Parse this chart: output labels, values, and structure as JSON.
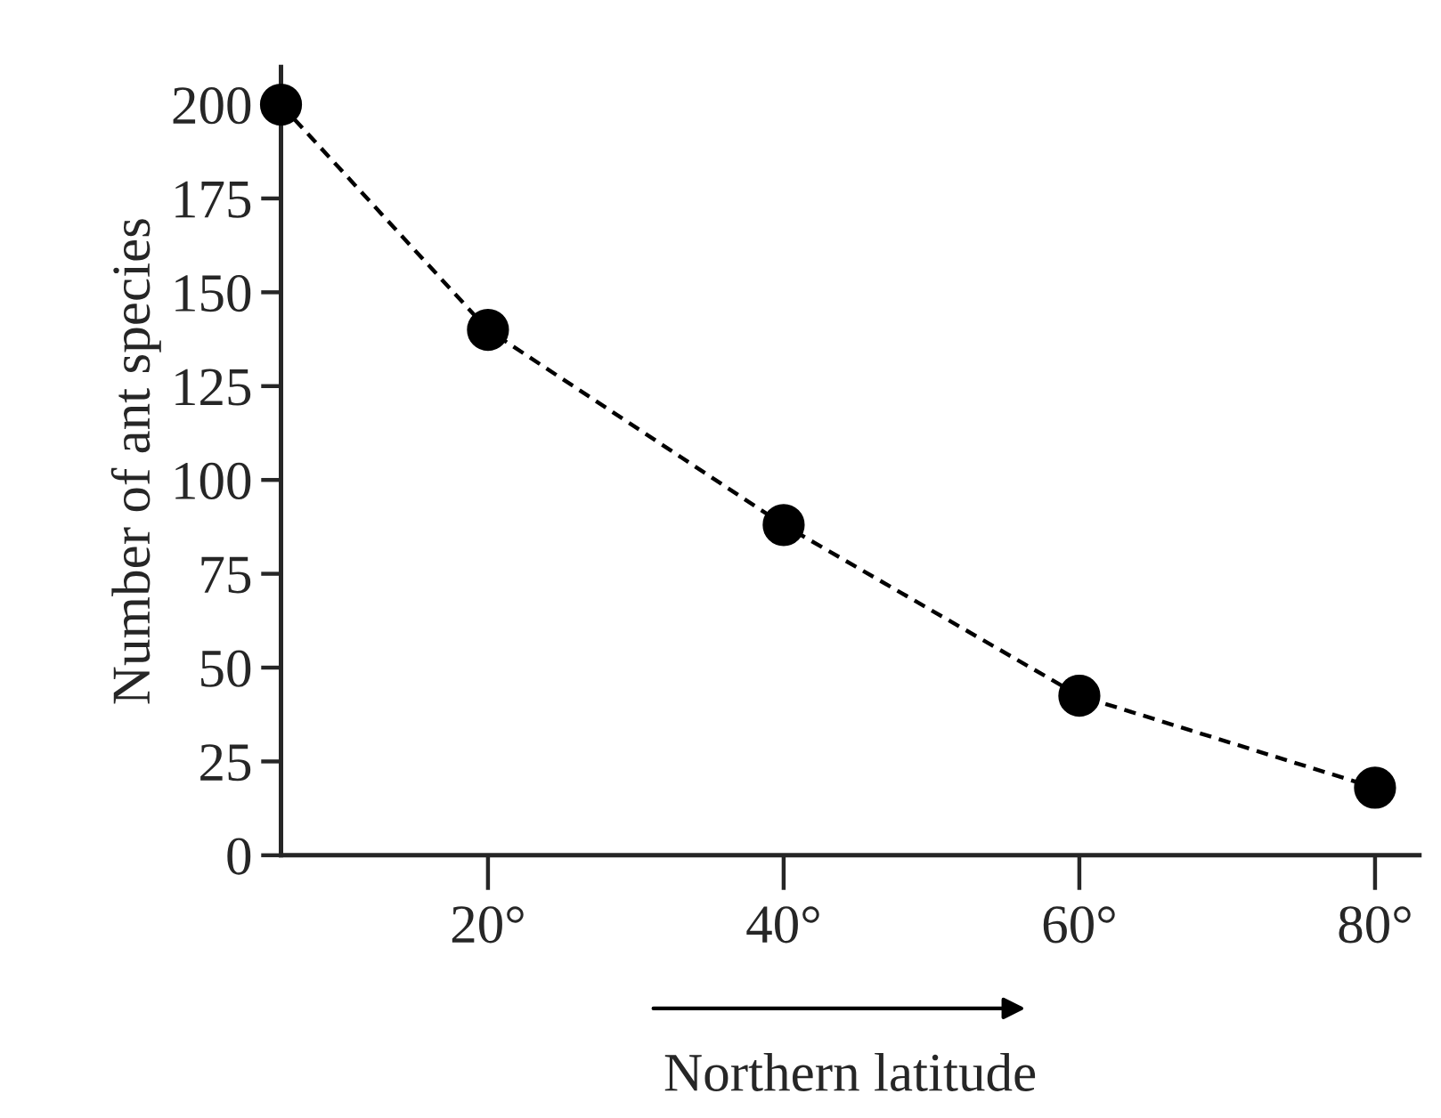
{
  "chart_data": {
    "type": "line",
    "xlabel": "Northern latitude",
    "ylabel": "Number of ant species",
    "x": [
      6,
      20,
      40,
      60,
      80
    ],
    "series": [
      {
        "color": "#000000",
        "values": [
          200,
          140,
          88,
          42.5,
          18
        ]
      }
    ],
    "xlim": [
      6,
      83
    ],
    "xticks": [
      {
        "value": 20,
        "label": "20°"
      },
      {
        "value": 40,
        "label": "40°"
      },
      {
        "value": 60,
        "label": "60°"
      },
      {
        "value": 80,
        "label": "80°"
      }
    ],
    "ylim": [
      0,
      210
    ],
    "yticks": [
      0,
      25,
      50,
      75,
      100,
      125,
      150,
      175,
      200
    ],
    "marker": "circle",
    "line_style": "dashed",
    "grid": false,
    "legend": false
  }
}
